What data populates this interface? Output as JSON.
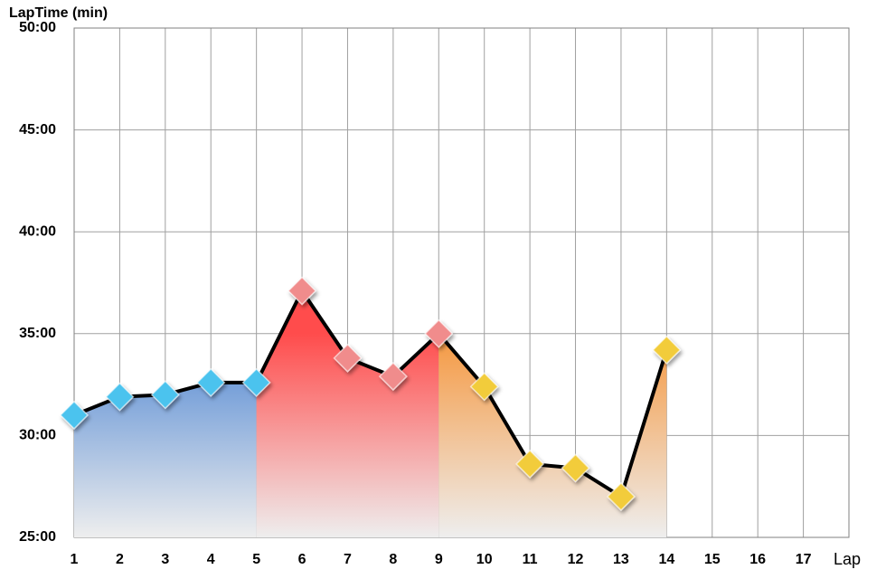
{
  "chart_data": {
    "type": "area_line",
    "y_label": "LapTime (min)",
    "x_label": "Lap",
    "x": [
      1,
      2,
      3,
      4,
      5,
      6,
      7,
      8,
      9,
      10,
      11,
      12,
      13,
      14
    ],
    "series": [
      {
        "color": "#000000",
        "values": [
          31.0,
          31.9,
          32.0,
          32.6,
          32.6,
          37.1,
          33.8,
          32.9,
          35.0,
          32.4,
          28.6,
          28.4,
          27.0,
          34.2
        ]
      }
    ],
    "segments": [
      {
        "from": 1,
        "to": 5,
        "fill": "#4f86d2",
        "marker": "#4cc3ee"
      },
      {
        "from": 5,
        "to": 9,
        "fill": "#ff4c4c",
        "marker": "#f08c8c"
      },
      {
        "from": 9,
        "to": 14,
        "fill": "#f59840",
        "marker": "#f2cc3a"
      }
    ],
    "xlim": [
      1,
      18
    ],
    "xticks": [
      1,
      2,
      3,
      4,
      5,
      6,
      7,
      8,
      9,
      10,
      11,
      12,
      13,
      14,
      15,
      16,
      17
    ],
    "ylim": [
      25,
      50
    ],
    "yticks": [
      {
        "value": 25,
        "label": "25:00"
      },
      {
        "value": 30,
        "label": "30:00"
      },
      {
        "value": 35,
        "label": "35:00"
      },
      {
        "value": 40,
        "label": "40:00"
      },
      {
        "value": 45,
        "label": "45:00"
      },
      {
        "value": 50,
        "label": "50:00"
      }
    ],
    "grid": true
  }
}
